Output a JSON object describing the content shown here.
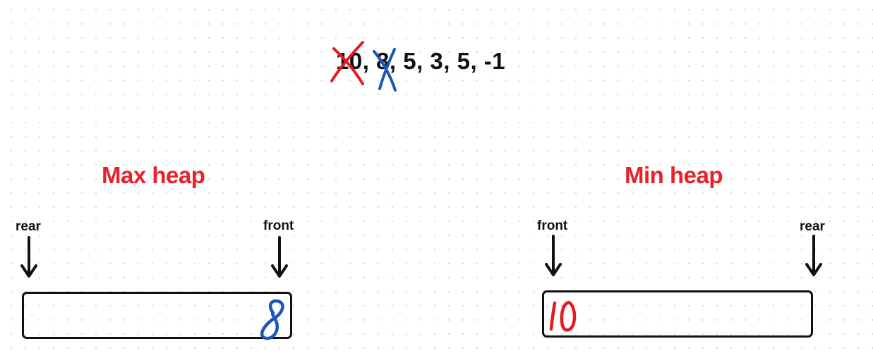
{
  "sequence": {
    "text": "10, 8, 5, 3, 5, -1",
    "crossed_out": [
      "10",
      "8"
    ]
  },
  "max_heap": {
    "title": "Max heap",
    "rear_label": "rear",
    "front_label": "front",
    "contents": "8"
  },
  "min_heap": {
    "title": "Min heap",
    "front_label": "front",
    "rear_label": "rear",
    "contents": "10"
  },
  "colors": {
    "title": "#e8212b",
    "ink_red": "#e21b23",
    "ink_blue": "#1c54b8",
    "text": "#111111"
  }
}
